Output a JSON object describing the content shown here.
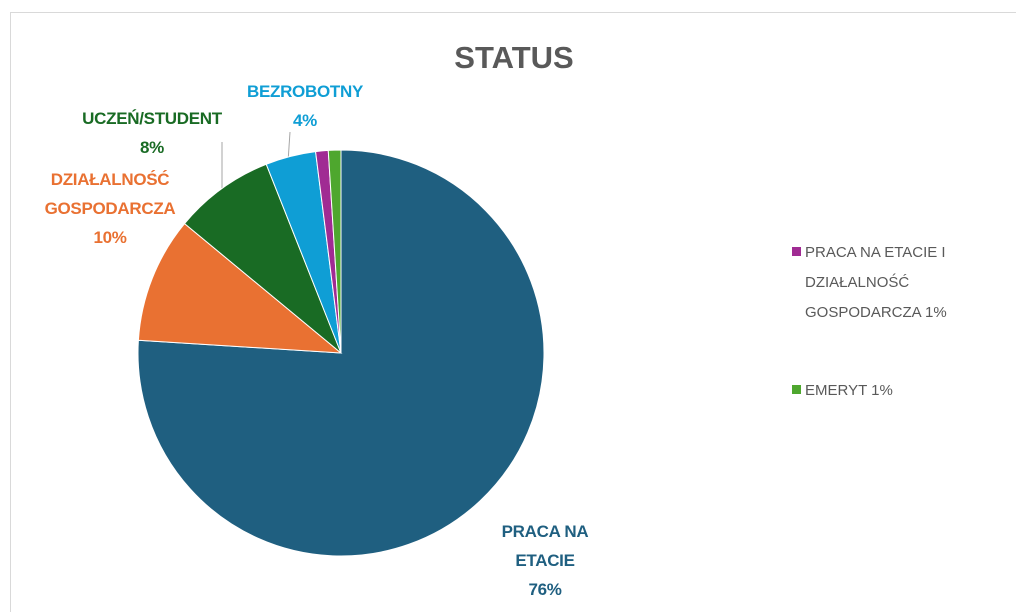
{
  "chart_data": {
    "type": "pie",
    "title": "STATUS",
    "categories": [
      "PRACA NA ETACIE",
      "DZIAŁALNOŚĆ GOSPODARCZA",
      "UCZEŃ/STUDENT",
      "BEZROBOTNY",
      "PRACA NA ETACIE I DZIAŁALNOŚĆ GOSPODARCZA",
      "EMERYT"
    ],
    "values": [
      76,
      10,
      8,
      4,
      1,
      1
    ],
    "value_labels": [
      "76%",
      "10%",
      "8%",
      "4%",
      "1%",
      "1%"
    ],
    "colors": [
      "#1f5f80",
      "#e97132",
      "#196b24",
      "#0f9ed5",
      "#a02b93",
      "#4ea72e"
    ],
    "legend": "right"
  }
}
